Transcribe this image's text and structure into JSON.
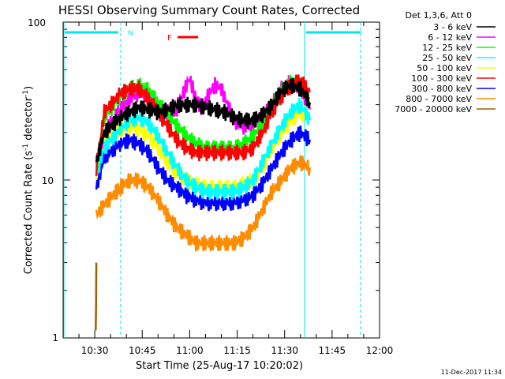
{
  "chart_data": {
    "type": "line",
    "title": "HESSI Observing Summary Count Rates, Corrected",
    "xlabel": "Start Time (25-Aug-17 10:20:02)",
    "ylabel_main": "Corrected Count Rate (s",
    "ylabel_sup": "-1",
    "ylabel_mid": " detector",
    "ylabel_end": ")",
    "x_ticks": [
      "10:30",
      "10:45",
      "11:00",
      "11:15",
      "11:30",
      "11:45",
      "12:00"
    ],
    "x_tick_minutes": [
      30,
      45,
      60,
      75,
      90,
      105,
      120
    ],
    "x_range_minutes": [
      20,
      120
    ],
    "y_scale": "log",
    "ylim": [
      1,
      100
    ],
    "y_ticks": [
      "1",
      "10",
      "100"
    ],
    "legend_title": "Det 1,3,6, Att 0",
    "legend_position": "right",
    "timestamp": "11-Dec-2017 11:34",
    "series": [
      {
        "name": "3 - 6 keV",
        "color": "#000000",
        "x": [
          30.5,
          33,
          38,
          41,
          44,
          47,
          50,
          53,
          56,
          59,
          62,
          65,
          68,
          71,
          74,
          77,
          80,
          83,
          86,
          89,
          92,
          95,
          98
        ],
        "y": [
          13,
          20,
          25,
          27,
          29,
          28,
          27,
          28,
          30,
          30,
          30,
          29,
          28,
          27,
          25,
          24,
          24,
          26,
          30,
          37,
          40,
          38,
          31
        ]
      },
      {
        "name": "6 - 12 keV",
        "color": "#ff00ff",
        "x": [
          30.5,
          33,
          38,
          41,
          44,
          47,
          50,
          53,
          56,
          58,
          60,
          62,
          64,
          66,
          68,
          70,
          72,
          74,
          77,
          80,
          83,
          86,
          89,
          92,
          95,
          98
        ],
        "y": [
          13,
          20,
          28,
          33,
          36,
          34,
          29,
          27,
          29,
          36,
          44,
          33,
          28,
          35,
          40,
          38,
          30,
          24,
          22,
          22,
          25,
          30,
          38,
          42,
          39,
          28
        ]
      },
      {
        "name": "12 - 25 keV",
        "color": "#00ff00",
        "x": [
          30.5,
          33,
          38,
          41,
          44,
          47,
          50,
          53,
          56,
          59,
          62,
          65,
          68,
          71,
          74,
          77,
          80,
          83,
          86,
          89,
          92,
          95,
          98
        ],
        "y": [
          12,
          25,
          34,
          38,
          40,
          37,
          31,
          26,
          22,
          19,
          17,
          16,
          16,
          16,
          16,
          17,
          19,
          23,
          29,
          37,
          42,
          41,
          33
        ]
      },
      {
        "name": "25 - 50 keV",
        "color": "#00ffff",
        "x": [
          30.5,
          33,
          38,
          41,
          44,
          47,
          50,
          53,
          56,
          59,
          62,
          65,
          68,
          71,
          74,
          77,
          80,
          83,
          86,
          89,
          92,
          95,
          98
        ],
        "y": [
          11,
          16,
          21,
          24,
          25,
          23,
          19,
          15,
          12,
          10,
          9,
          8.5,
          8.5,
          8.5,
          8.5,
          9,
          10,
          13,
          17,
          22,
          27,
          30,
          24
        ]
      },
      {
        "name": "50 - 100 keV",
        "color": "#ffff00",
        "x": [
          30.5,
          33,
          38,
          41,
          44,
          47,
          50,
          53,
          56,
          59,
          62,
          65,
          68,
          71,
          74,
          77,
          80,
          83,
          86,
          89,
          92,
          95,
          98
        ],
        "y": [
          11,
          18,
          21,
          22,
          21,
          19,
          16,
          13,
          11,
          10,
          9.5,
          9,
          9,
          9,
          9,
          9.5,
          10,
          12,
          16,
          20,
          24,
          27,
          24
        ]
      },
      {
        "name": "100 - 300 keV",
        "color": "#ff0000",
        "x": [
          30.5,
          33,
          38,
          41,
          44,
          47,
          50,
          53,
          56,
          59,
          62,
          65,
          68,
          71,
          74,
          77,
          80,
          83,
          86,
          89,
          92,
          95,
          98
        ],
        "y": [
          12,
          27,
          35,
          38,
          38,
          33,
          27,
          22,
          18,
          16,
          15,
          15,
          15,
          15,
          15,
          15,
          16,
          20,
          27,
          34,
          40,
          43,
          36
        ]
      },
      {
        "name": "300 - 800 keV",
        "color": "#0000ff",
        "x": [
          30.5,
          33,
          38,
          41,
          44,
          47,
          50,
          53,
          56,
          59,
          62,
          65,
          68,
          71,
          74,
          77,
          80,
          83,
          86,
          89,
          92,
          95,
          98
        ],
        "y": [
          9,
          14,
          17,
          18,
          17,
          15,
          12,
          10,
          9,
          8,
          7.5,
          7.2,
          7.2,
          7.2,
          7.2,
          7.5,
          8,
          9.5,
          12,
          15,
          18,
          20,
          18
        ]
      },
      {
        "name": "800 - 7000 keV",
        "color": "#ff8c00",
        "x": [
          30.5,
          33,
          38,
          41,
          44,
          47,
          50,
          53,
          56,
          59,
          62,
          65,
          68,
          71,
          74,
          77,
          80,
          83,
          86,
          89,
          92,
          95,
          98
        ],
        "y": [
          6,
          7,
          9,
          10,
          10,
          9,
          7.5,
          6,
          5,
          4.5,
          4,
          4,
          4,
          4,
          4,
          4.3,
          5,
          6.5,
          8.5,
          10,
          12,
          13,
          12
        ]
      },
      {
        "name": "7000 - 20000 keV",
        "color": "#a06000",
        "x": [
          30.3,
          30.5
        ],
        "y": [
          1,
          3
        ]
      }
    ],
    "attenuator_flag": "F",
    "north_flag": "N"
  }
}
